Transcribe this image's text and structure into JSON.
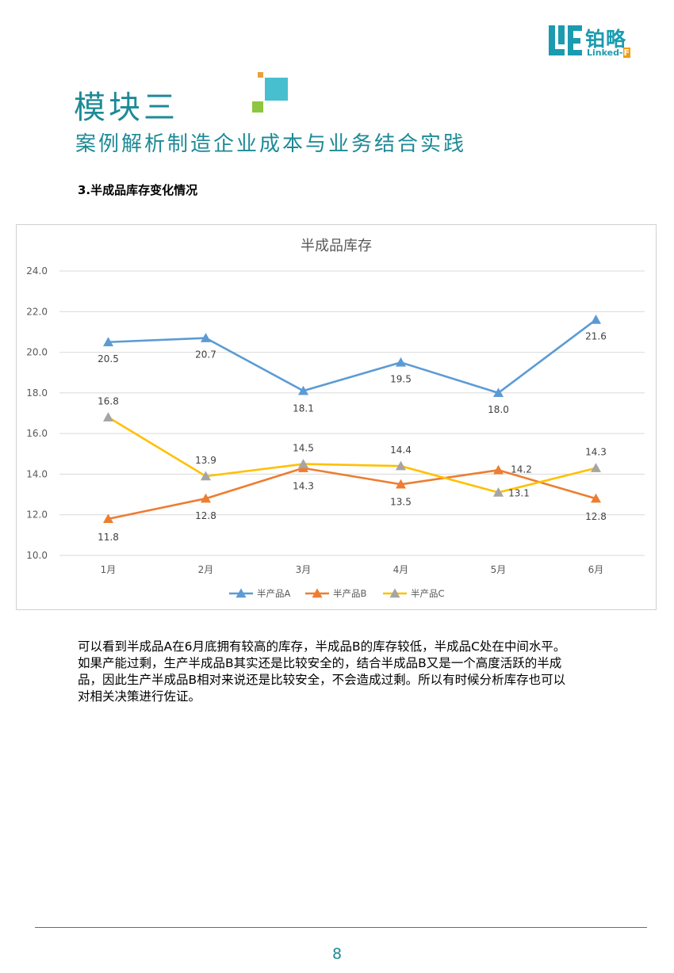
{
  "logo": {
    "cn": "铂略",
    "en_prefix": "Linked-",
    "en_accent": "F"
  },
  "header": {
    "module_title": "模块三",
    "module_subtitle": "案例解析制造企业成本与业务结合实践"
  },
  "section_heading": "3.半成品库存变化情况",
  "chart_data": {
    "type": "line",
    "title": "半成品库存",
    "categories": [
      "1月",
      "2月",
      "3月",
      "4月",
      "5月",
      "6月"
    ],
    "ylim": [
      10.0,
      24.0
    ],
    "yticks": [
      "10.0",
      "12.0",
      "14.0",
      "16.0",
      "18.0",
      "20.0",
      "22.0",
      "24.0"
    ],
    "grid": true,
    "legend_position": "bottom",
    "series": [
      {
        "name": "半产品A",
        "color": "#5b9bd5",
        "values": [
          20.5,
          20.7,
          18.1,
          19.5,
          18.0,
          21.6
        ],
        "labels": [
          "20.5",
          "20.7",
          "18.1",
          "19.5",
          "18.0",
          "21.6"
        ]
      },
      {
        "name": "半产品B",
        "color": "#ed7d31",
        "values": [
          11.8,
          12.8,
          14.3,
          13.5,
          14.2,
          12.8
        ],
        "labels": [
          "11.8",
          "12.8",
          "14.3",
          "13.5",
          "14.2",
          "12.8"
        ]
      },
      {
        "name": "半产品C",
        "color": "#ffc000",
        "marker_color": "#a5a5a5",
        "values": [
          16.8,
          13.9,
          14.5,
          14.4,
          13.1,
          14.3
        ],
        "labels": [
          "16.8",
          "13.9",
          "14.5",
          "14.4",
          "13.1",
          "14.3"
        ]
      }
    ]
  },
  "paragraph": [
    "可以看到半成品A在6月底拥有较高的库存，半成品B的库存较低，半成品C处在中间水平。",
    "如果产能过剩，生产半成品B其实还是比较安全的，结合半成品B又是一个高度活跃的半成",
    "品，因此生产半成品B相对来说还是比较安全，不会造成过剩。所以有时候分析库存也可以",
    "对相关决策进行佐证。"
  ],
  "footer": {
    "page_number": "8"
  }
}
